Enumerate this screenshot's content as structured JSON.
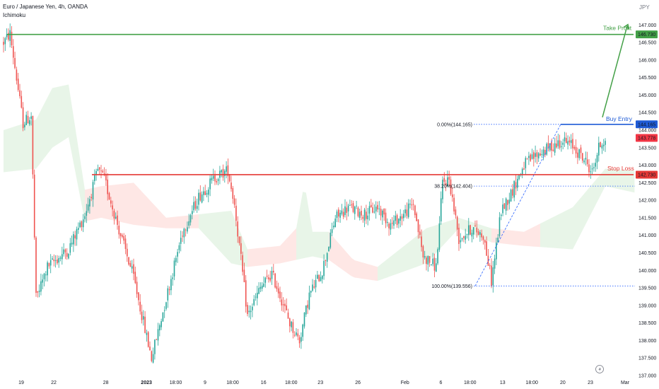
{
  "header": {
    "symbol": "Euro / Japanese Yen, 4h, OANDA",
    "indicator": "Ichimoku",
    "currency": "JPY"
  },
  "colors": {
    "up": "#26a69a",
    "down": "#ef5350",
    "take_profit": "#43a047",
    "stop_loss": "#e53935",
    "entry": "#1e5bd6",
    "fib": "#2962ff",
    "cloud_green": "#4caf50",
    "cloud_red": "#f44336",
    "last_price": "#f23645"
  },
  "chart_data": {
    "type": "candlestick",
    "ylim": [
      137.0,
      147.55
    ],
    "y_ticks": [
      "137.000",
      "137.500",
      "138.000",
      "138.500",
      "139.000",
      "139.500",
      "140.000",
      "140.500",
      "141.000",
      "141.500",
      "142.000",
      "142.500",
      "143.000",
      "143.500",
      "144.000",
      "144.500",
      "145.000",
      "145.500",
      "146.000",
      "146.500",
      "147.000"
    ],
    "x_ticks": [
      "19",
      "22",
      "28",
      "2023",
      "18:00",
      "9",
      "18:00",
      "16",
      "18:00",
      "23",
      "26",
      "Feb",
      "6",
      "18:00",
      "13",
      "18:00",
      "20",
      "23",
      "Mar"
    ],
    "price_path": [
      [
        0,
        146.5
      ],
      [
        4,
        146.75
      ],
      [
        12,
        144.2
      ],
      [
        17,
        144.4
      ],
      [
        20,
        139.2
      ],
      [
        27,
        140.1
      ],
      [
        40,
        140.6
      ],
      [
        50,
        141.6
      ],
      [
        58,
        142.85
      ],
      [
        62,
        142.6
      ],
      [
        72,
        141.0
      ],
      [
        80,
        139.8
      ],
      [
        88,
        138.1
      ],
      [
        91,
        137.5
      ],
      [
        100,
        139.2
      ],
      [
        110,
        141.1
      ],
      [
        120,
        142.1
      ],
      [
        130,
        142.65
      ],
      [
        138,
        142.85
      ],
      [
        142,
        141.9
      ],
      [
        150,
        138.7
      ],
      [
        158,
        139.5
      ],
      [
        165,
        139.9
      ],
      [
        170,
        139.3
      ],
      [
        176,
        138.5
      ],
      [
        182,
        138.0
      ],
      [
        188,
        139.3
      ],
      [
        196,
        140.0
      ],
      [
        204,
        141.5
      ],
      [
        212,
        141.8
      ],
      [
        222,
        141.6
      ],
      [
        230,
        141.8
      ],
      [
        238,
        141.3
      ],
      [
        246,
        141.6
      ],
      [
        252,
        141.9
      ],
      [
        258,
        140.4
      ],
      [
        266,
        140.1
      ],
      [
        270,
        142.5
      ],
      [
        274,
        142.6
      ],
      [
        280,
        140.9
      ],
      [
        288,
        141.2
      ],
      [
        295,
        141.0
      ],
      [
        300,
        139.7
      ],
      [
        306,
        141.7
      ],
      [
        312,
        142.2
      ],
      [
        320,
        143.0
      ],
      [
        328,
        143.3
      ],
      [
        336,
        143.5
      ],
      [
        343,
        143.7
      ],
      [
        350,
        143.55
      ],
      [
        358,
        143.1
      ],
      [
        362,
        142.8
      ],
      [
        366,
        143.5
      ],
      [
        370,
        143.78
      ]
    ],
    "ohlc_summary": {
      "open": 146.5,
      "high": 146.75,
      "low": 137.5,
      "close": 143.778
    },
    "levels": [
      {
        "label": "Take Profit",
        "price": 146.73,
        "tag": "146.730"
      },
      {
        "label": "Buy Entry",
        "price": 144.165,
        "tag": "144.165"
      },
      {
        "label": "Stop Loss",
        "price": 142.73,
        "tag": "142.730"
      }
    ],
    "last_price": {
      "price": 143.778,
      "tag": "143.778"
    },
    "fib_levels": [
      {
        "label": "0.00%(144.165)",
        "price": 144.165
      },
      {
        "label": "38.20%(142.404)",
        "price": 142.404
      },
      {
        "label": "100.00%(139.556)",
        "price": 139.556
      }
    ],
    "cloud_top": [
      [
        0,
        144.0
      ],
      [
        20,
        144.3
      ],
      [
        30,
        145.2
      ],
      [
        40,
        145.3
      ],
      [
        50,
        142.3
      ],
      [
        60,
        142.4
      ],
      [
        80,
        142.5
      ],
      [
        100,
        141.5
      ],
      [
        120,
        141.6
      ],
      [
        140,
        141.7
      ],
      [
        150,
        140.6
      ],
      [
        170,
        140.7
      ],
      [
        180,
        141.2
      ],
      [
        185,
        142.5
      ],
      [
        190,
        141.1
      ],
      [
        200,
        141.1
      ],
      [
        215,
        140.3
      ],
      [
        230,
        140.1
      ],
      [
        260,
        141.2
      ],
      [
        280,
        141.5
      ],
      [
        300,
        141.2
      ],
      [
        320,
        141.1
      ],
      [
        350,
        141.8
      ],
      [
        370,
        142.9
      ],
      [
        400,
        142.8
      ]
    ],
    "cloud_bottom": [
      [
        0,
        142.8
      ],
      [
        20,
        142.9
      ],
      [
        30,
        143.5
      ],
      [
        40,
        143.8
      ],
      [
        50,
        141.4
      ],
      [
        60,
        141.5
      ],
      [
        80,
        141.3
      ],
      [
        100,
        141.2
      ],
      [
        120,
        141.2
      ],
      [
        140,
        140.2
      ],
      [
        150,
        140.1
      ],
      [
        170,
        140.2
      ],
      [
        180,
        140.3
      ],
      [
        190,
        140.4
      ],
      [
        200,
        140.3
      ],
      [
        215,
        139.8
      ],
      [
        230,
        139.7
      ],
      [
        260,
        140.2
      ],
      [
        280,
        141.2
      ],
      [
        300,
        140.8
      ],
      [
        320,
        140.7
      ],
      [
        350,
        140.6
      ],
      [
        370,
        142.4
      ],
      [
        400,
        142.1
      ]
    ]
  }
}
